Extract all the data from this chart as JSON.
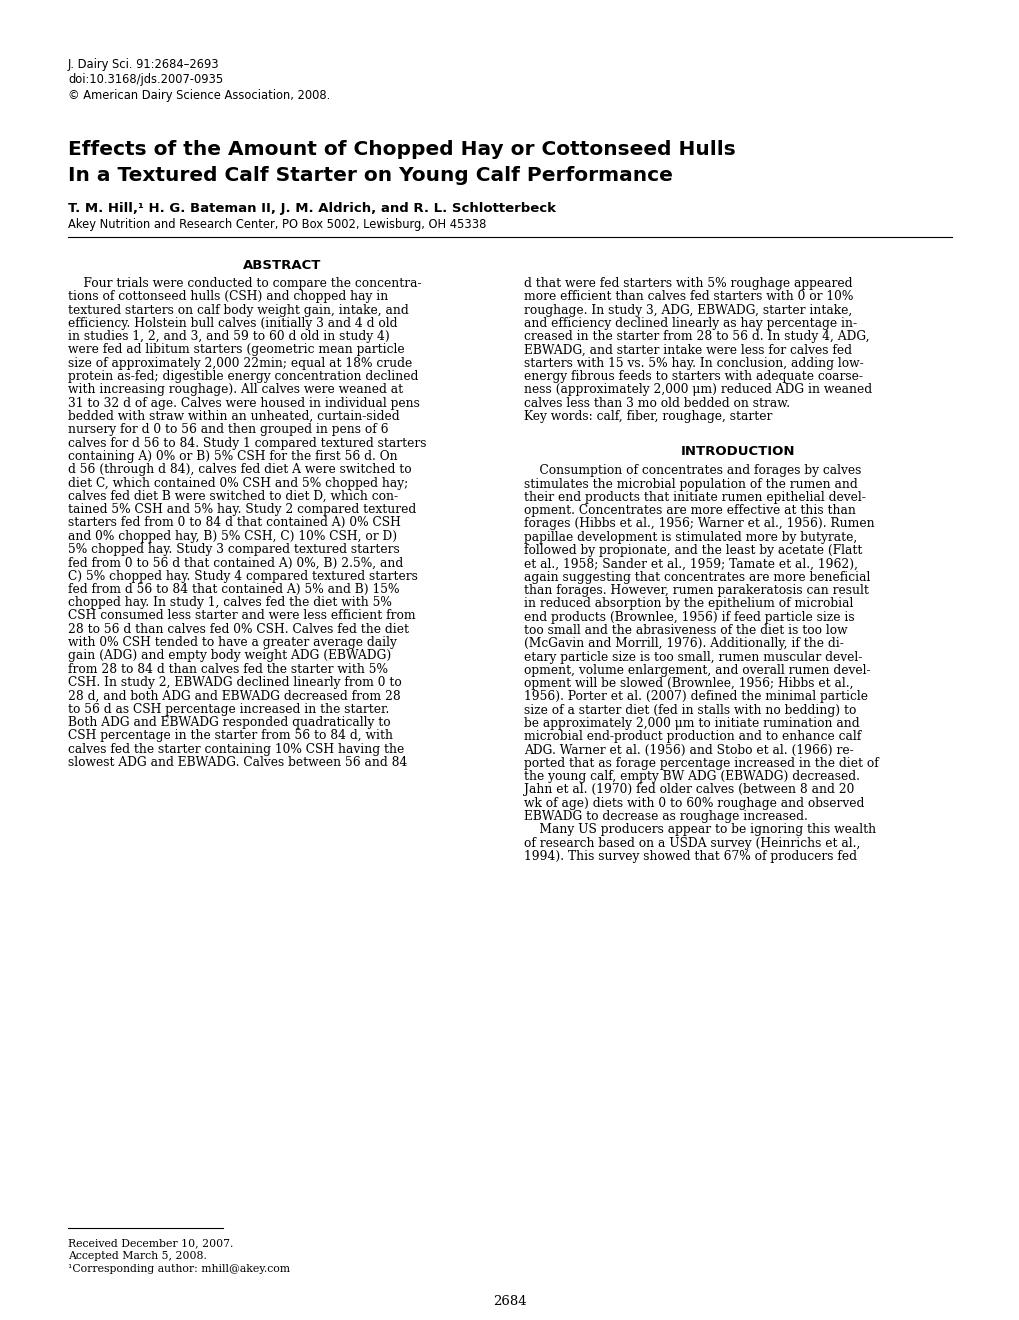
{
  "header_line1": "J. Dairy Sci. 91:2684–2693",
  "header_line2": "doi:10.3168/jds.2007-0935",
  "header_line3": "© American Dairy Science Association, 2008.",
  "title_line1": "Effects of the Amount of Chopped Hay or Cottonseed Hulls",
  "title_line2": "In a Textured Calf Starter on Young Calf Performance",
  "authors_bold": "T. M. Hill,¹ H. G. Bateman II, J. M. Aldrich, and R. L. Schlotterbeck",
  "affiliation": "Akey Nutrition and Research Center, PO Box 5002, Lewisburg, OH 45338",
  "abstract_title": "ABSTRACT",
  "abstract_col1_lines": [
    "    Four trials were conducted to compare the concentra-",
    "tions of cottonseed hulls (CSH) and chopped hay in",
    "textured starters on calf body weight gain, intake, and",
    "efficiency. Holstein bull calves (initially 3 and 4 d old",
    "in studies 1, 2, and 3, and 59 to 60 d old in study 4)",
    "were fed ad libitum starters (geometric mean particle",
    "size of approximately 2,000 22min; equal at 18% crude",
    "protein as-fed; digestible energy concentration declined",
    "with increasing roughage). All calves were weaned at",
    "31 to 32 d of age. Calves were housed in individual pens",
    "bedded with straw within an unheated, curtain-sided",
    "nursery for d 0 to 56 and then grouped in pens of 6",
    "calves for d 56 to 84. Study 1 compared textured starters",
    "containing A) 0% or B) 5% CSH for the first 56 d. On",
    "d 56 (through d 84), calves fed diet A were switched to",
    "diet C, which contained 0% CSH and 5% chopped hay;",
    "calves fed diet B were switched to diet D, which con-",
    "tained 5% CSH and 5% hay. Study 2 compared textured",
    "starters fed from 0 to 84 d that contained A) 0% CSH",
    "and 0% chopped hay, B) 5% CSH, C) 10% CSH, or D)",
    "5% chopped hay. Study 3 compared textured starters",
    "fed from 0 to 56 d that contained A) 0%, B) 2.5%, and",
    "C) 5% chopped hay. Study 4 compared textured starters",
    "fed from d 56 to 84 that contained A) 5% and B) 15%",
    "chopped hay. In study 1, calves fed the diet with 5%",
    "CSH consumed less starter and were less efficient from",
    "28 to 56 d than calves fed 0% CSH. Calves fed the diet",
    "with 0% CSH tended to have a greater average daily",
    "gain (ADG) and empty body weight ADG (EBWADG)",
    "from 28 to 84 d than calves fed the starter with 5%",
    "CSH. In study 2, EBWADG declined linearly from 0 to",
    "28 d, and both ADG and EBWADG decreased from 28",
    "to 56 d as CSH percentage increased in the starter.",
    "Both ADG and EBWADG responded quadratically to",
    "CSH percentage in the starter from 56 to 84 d, with",
    "calves fed the starter containing 10% CSH having the",
    "slowest ADG and EBWADG. Calves between 56 and 84"
  ],
  "abstract_col2_lines": [
    "d that were fed starters with 5% roughage appeared",
    "more efficient than calves fed starters with 0 or 10%",
    "roughage. In study 3, ADG, EBWADG, starter intake,",
    "and efficiency declined linearly as hay percentage in-",
    "creased in the starter from 28 to 56 d. In study 4, ADG,",
    "EBWADG, and starter intake were less for calves fed",
    "starters with 15 vs. 5% hay. In conclusion, adding low-",
    "energy fibrous feeds to starters with adequate coarse-",
    "ness (approximately 2,000 μm) reduced ADG in weaned",
    "calves less than 3 mo old bedded on straw.",
    "Key words: calf, fiber, roughage, starter"
  ],
  "intro_title": "INTRODUCTION",
  "intro_col2_lines": [
    "    Consumption of concentrates and forages by calves",
    "stimulates the microbial population of the rumen and",
    "their end products that initiate rumen epithelial devel-",
    "opment. Concentrates are more effective at this than",
    "forages (Hibbs et al., 1956; Warner et al., 1956). Rumen",
    "papillae development is stimulated more by butyrate,",
    "followed by propionate, and the least by acetate (Flatt",
    "et al., 1958; Sander et al., 1959; Tamate et al., 1962),",
    "again suggesting that concentrates are more beneficial",
    "than forages. However, rumen parakeratosis can result",
    "in reduced absorption by the epithelium of microbial",
    "end products (Brownlee, 1956) if feed particle size is",
    "too small and the abrasiveness of the diet is too low",
    "(McGavin and Morrill, 1976). Additionally, if the di-",
    "etary particle size is too small, rumen muscular devel-",
    "opment, volume enlargement, and overall rumen devel-",
    "opment will be slowed (Brownlee, 1956; Hibbs et al.,",
    "1956). Porter et al. (2007) defined the minimal particle",
    "size of a starter diet (fed in stalls with no bedding) to",
    "be approximately 2,000 μm to initiate rumination and",
    "microbial end-product production and to enhance calf",
    "ADG. Warner et al. (1956) and Stobo et al. (1966) re-",
    "ported that as forage percentage increased in the diet of",
    "the young calf, empty BW ADG (EBWADG) decreased.",
    "Jahn et al. (1970) fed older calves (between 8 and 20",
    "wk of age) diets with 0 to 60% roughage and observed",
    "EBWADG to decrease as roughage increased.",
    "    Many US producers appear to be ignoring this wealth",
    "of research based on a USDA survey (Heinrichs et al.,",
    "1994). This survey showed that 67% of producers fed"
  ],
  "footnote_received": "Received December 10, 2007.",
  "footnote_accepted": "Accepted March 5, 2008.",
  "footnote_corresponding": "¹Corresponding author: mhill@akey.com",
  "page_number": "2684"
}
